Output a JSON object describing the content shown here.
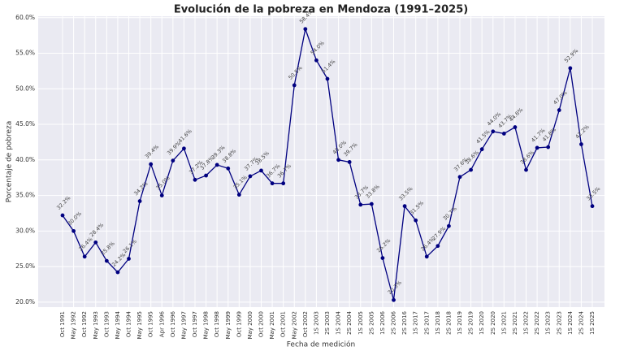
{
  "chart_data": {
    "type": "line",
    "title": "Evolución de la pobreza en Mendoza (1991–2025)",
    "x_label": "Fecha de medición",
    "y_label": "Porcentaje de pobreza",
    "categories": [
      "Oct 1991",
      "May 1992",
      "Oct 1992",
      "May 1993",
      "Oct 1993",
      "May 1994",
      "Oct 1994",
      "May 1995",
      "Oct 1995",
      "Apr 1996",
      "Oct 1996",
      "May 1997",
      "Oct 1997",
      "May 1998",
      "Oct 1998",
      "May 1999",
      "Oct 1999",
      "May 2000",
      "Oct 2000",
      "May 2001",
      "Oct 2001",
      "May 2002",
      "Oct 2002",
      "1S 2003",
      "2S 2003",
      "1S 2004",
      "2S 2004",
      "1S 2005",
      "2S 2005",
      "1S 2006",
      "2S 2006",
      "2S 2016",
      "1S 2017",
      "2S 2017",
      "1S 2018",
      "2S 2018",
      "1S 2019",
      "2S 2019",
      "1S 2020",
      "2S 2020",
      "1S 2021",
      "2S 2021",
      "1S 2022",
      "2S 2022",
      "1S 2023",
      "2S 2023",
      "1S 2024",
      "2S 2024",
      "1S 2025"
    ],
    "values": [
      32.2,
      30.0,
      26.4,
      28.4,
      25.8,
      24.2,
      26.1,
      34.2,
      39.4,
      35.0,
      39.9,
      41.6,
      37.2,
      37.8,
      39.3,
      38.8,
      35.1,
      37.7,
      38.5,
      36.7,
      36.7,
      50.5,
      58.4,
      54.0,
      51.4,
      40.0,
      39.7,
      33.7,
      33.8,
      26.2,
      20.3,
      33.5,
      31.5,
      26.4,
      27.9,
      30.7,
      37.6,
      38.6,
      41.5,
      44.0,
      43.7,
      44.6,
      38.6,
      41.7,
      41.8,
      47.0,
      52.9,
      42.2,
      33.5
    ],
    "value_labels": [
      "32.2%",
      "30.0%",
      "26.4%",
      "28.4%",
      "25.8%",
      "24.2%",
      "26.1%",
      "34.2%",
      "39.4%",
      "35.0%",
      "39.9%",
      "41.6%",
      "37.2%",
      "37.8%",
      "39.3%",
      "38.8%",
      "35.1%",
      "37.7%",
      "38.5%",
      "36.7%",
      "36.7%",
      "50.5%",
      "58.4%",
      "54.0%",
      "51.4%",
      "40.0%",
      "39.7%",
      "33.7%",
      "33.8%",
      "26.2%",
      "20.3%",
      "33.5%",
      "31.5%",
      "26.4%",
      "27.9%",
      "30.7%",
      "37.6%",
      "38.6%",
      "41.5%",
      "44.0%",
      "43.7%",
      "44.6%",
      "38.6%",
      "41.7%",
      "41.8%",
      "47.0%",
      "52.9%",
      "42.2%",
      "33.5%"
    ],
    "color": "#000080",
    "ylim": [
      19.3,
      60.2
    ],
    "yticks": [
      {
        "value": 20,
        "label": "20.0%"
      },
      {
        "value": 25,
        "label": "25.0%"
      },
      {
        "value": 30,
        "label": "30.0%"
      },
      {
        "value": 35,
        "label": "35.0%"
      },
      {
        "value": 40,
        "label": "40.0%"
      },
      {
        "value": 45,
        "label": "45.0%"
      },
      {
        "value": 50,
        "label": "50.0%"
      },
      {
        "value": 55,
        "label": "55.0%"
      },
      {
        "value": 60,
        "label": "60.0%"
      }
    ],
    "grid": true
  }
}
